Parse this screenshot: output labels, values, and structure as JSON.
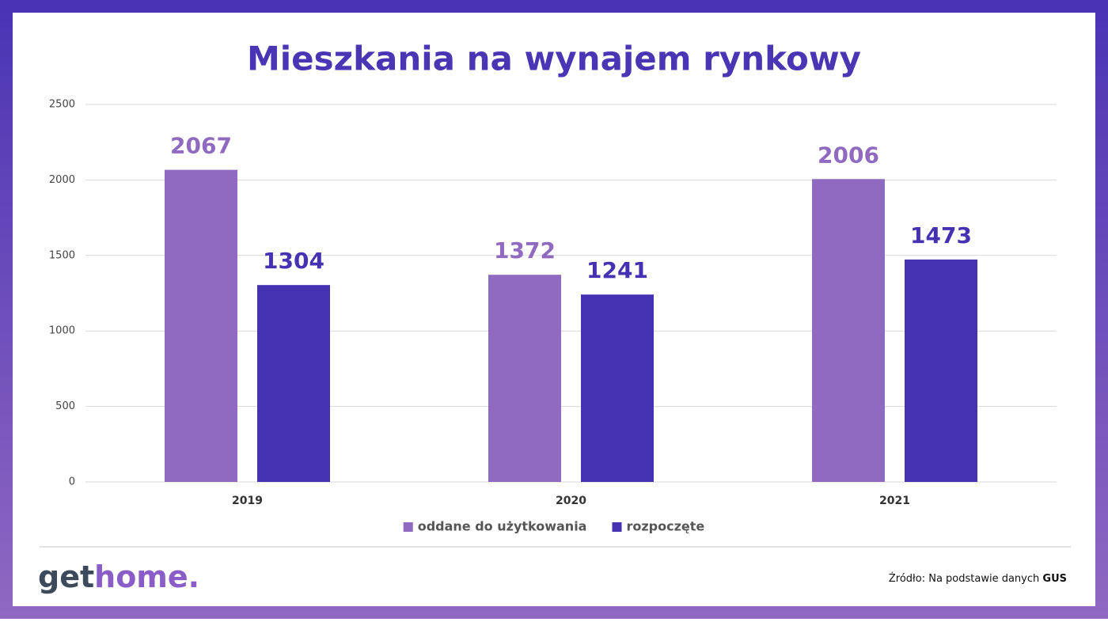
{
  "chart_data": {
    "type": "bar",
    "title": "Mieszkania na wynajem rynkowy",
    "categories": [
      "2019",
      "2020",
      "2021"
    ],
    "series": [
      {
        "name": "oddane do użytkowania",
        "color": "#9069c0",
        "values": [
          2067,
          1372,
          2006
        ]
      },
      {
        "name": "rozpoczęte",
        "color": "#4532b3",
        "values": [
          1304,
          1241,
          1473
        ]
      }
    ],
    "ylim": [
      0,
      2500
    ],
    "yticks": [
      0,
      500,
      1000,
      1500,
      2000,
      2500
    ],
    "grid": true,
    "legend": "bottom"
  },
  "footer": {
    "logo_get": "get",
    "logo_home": "home.",
    "source": "Źródło: Na podstawie danych",
    "source_bold": "GUS"
  }
}
